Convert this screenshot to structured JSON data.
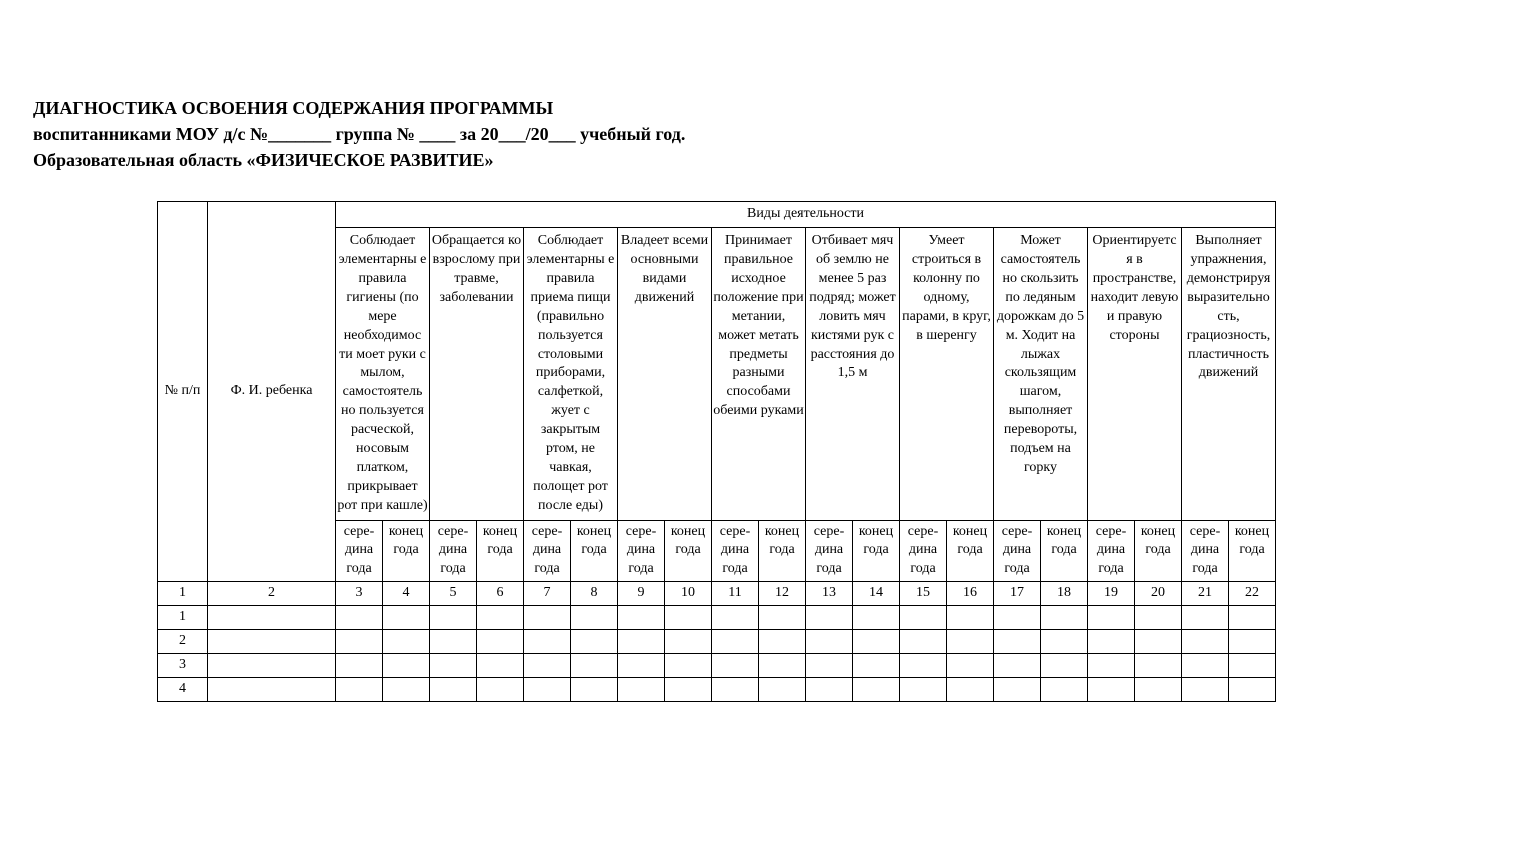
{
  "header": {
    "line1": "ДИАГНОСТИКА  ОСВОЕНИЯ  СОДЕРЖАНИЯ  ПРОГРАММЫ",
    "line2": "воспитанниками МОУ д/с №_______  группа № ____   за 20___/20___  учебный год.",
    "line3": "Образовательная  область  «ФИЗИЧЕСКОЕ  РАЗВИТИЕ»"
  },
  "table": {
    "col_num_label": "№ п/п",
    "col_name_label": "Ф. И. ребенка",
    "top_header": "Виды деятельности",
    "activities": [
      "Соблюдает элементарны е правила гигиены (по мере необходимос ти моет руки с мылом, самостоятель но пользуется расческой, носовым платком, прикрывает рот при кашле)",
      "Обращается ко взрослому при травме, заболевании",
      "Соблюдает элементарны е правила приема пищи (правильно пользуется столовыми приборами, салфеткой, жует с закрытым ртом, не чавкая, полощет рот после еды)",
      "Владеет всеми основными видами движений",
      "Принимает правильное исходное положение при метании, может метать предметы разными способами обеими руками",
      "Отбивает мяч об землю не менее 5 раз подряд; может ловить мяч кистями рук с расстояния до 1,5 м",
      "Умеет строиться в колонну по одному, парами, в круг, в шеренгу",
      "Может самостоятель но скользить по ледяным дорожкам до 5 м. Ходит на лыжах скользящим шагом, выполняет перевороты, подъем на горку",
      "Ориентируетс я в пространстве, находит левую и правую стороны",
      "Выполняет упражнения, демонстрируя выразительно сть, грациозность, пластичность движений"
    ],
    "sub_a": "сере- дина года",
    "sub_b": "конец года",
    "number_row": [
      "1",
      "2",
      "3",
      "4",
      "5",
      "6",
      "7",
      "8",
      "9",
      "10",
      "11",
      "12",
      "13",
      "14",
      "15",
      "16",
      "17",
      "18",
      "19",
      "20",
      "21",
      "22"
    ],
    "data_rows": [
      "1",
      "2",
      "3",
      "4"
    ]
  },
  "style": {
    "col_num_width": 50,
    "col_name_width": 128,
    "col_sub_width": 47,
    "font_family": "Times New Roman",
    "header_fontsize": 18,
    "cell_fontsize": 14,
    "border_color": "#000000",
    "background_color": "#ffffff"
  }
}
